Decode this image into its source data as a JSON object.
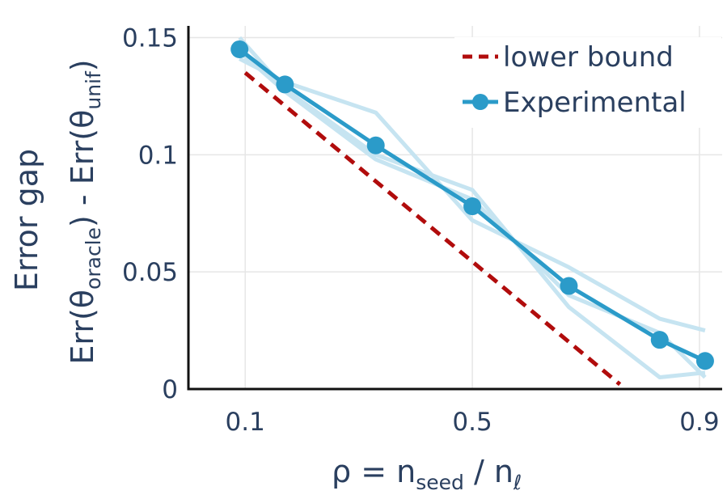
{
  "chart_data": {
    "type": "line",
    "x_axis": {
      "ticks": [
        0.1,
        0.5,
        0.9
      ],
      "tick_labels": [
        "0.1",
        "0.5",
        "0.9"
      ],
      "range": [
        0.0,
        0.94
      ],
      "label_main": "ρ = n",
      "label_sub1": "seed",
      "label_mid": " / n",
      "label_sub2": "ℓ"
    },
    "y_axis": {
      "ticks": [
        0,
        0.05,
        0.1,
        0.15
      ],
      "tick_labels": [
        "0",
        "0.05",
        "0.1",
        "0.15"
      ],
      "range": [
        0,
        0.155
      ],
      "label_line1": "Error gap",
      "label_err1": "Err(θ",
      "label_sub1": "oracle",
      "label_mid": ") - Err(θ",
      "label_sub2": "unif",
      "label_end": ")"
    },
    "grid": true,
    "legend_position": "top-right",
    "series": [
      {
        "name": "lower bound",
        "style": "dashed",
        "color": "#b10c0c",
        "x": [
          0.1,
          0.76
        ],
        "y": [
          0.135,
          0.002
        ]
      },
      {
        "name": "Experimental",
        "style": "solid-markers",
        "color": "#2b9bc9",
        "x": [
          0.09,
          0.17,
          0.33,
          0.5,
          0.67,
          0.83,
          0.91
        ],
        "y": [
          0.145,
          0.13,
          0.104,
          0.078,
          0.044,
          0.021,
          0.012
        ]
      }
    ],
    "individual_runs": {
      "color": "#c6e4f1",
      "x": [
        0.09,
        0.17,
        0.33,
        0.5,
        0.67,
        0.83,
        0.91
      ],
      "runs": [
        [
          0.15,
          0.128,
          0.1,
          0.085,
          0.035,
          0.005,
          0.007
        ],
        [
          0.141,
          0.131,
          0.118,
          0.072,
          0.052,
          0.03,
          0.025
        ],
        [
          0.144,
          0.127,
          0.098,
          0.081,
          0.04,
          0.024,
          0.005
        ]
      ]
    }
  }
}
